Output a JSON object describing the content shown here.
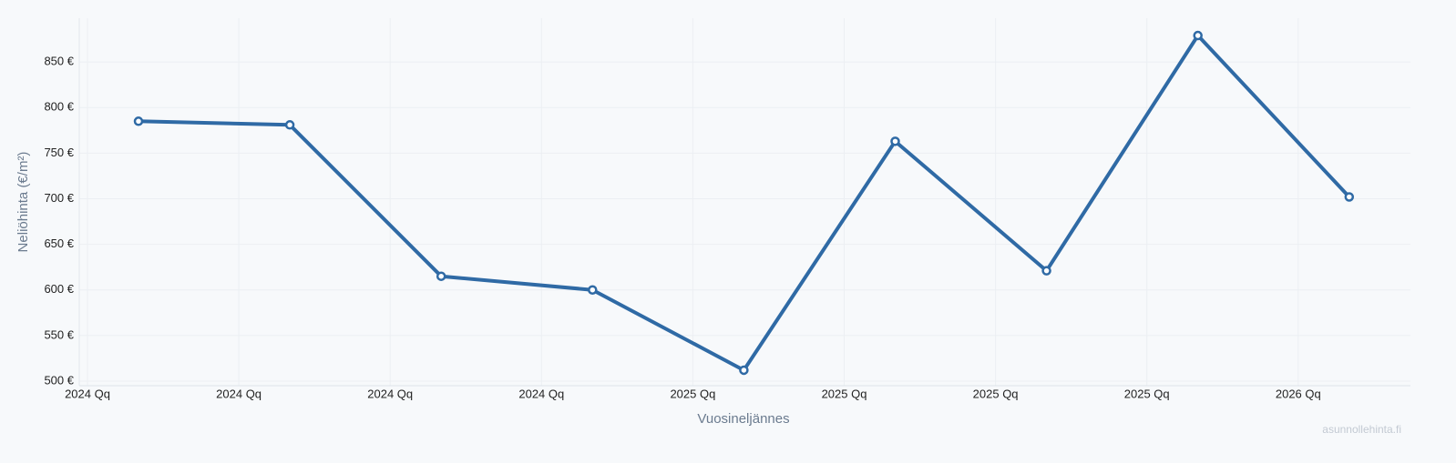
{
  "chart_data": {
    "type": "line",
    "x_label": "Vuosineljännes",
    "y_label": "Neliöhinta (€/m²)",
    "source": "asunnollehinta.fi",
    "categories": [
      "2024 Qq",
      "2024 Qq",
      "2024 Qq",
      "2024 Qq",
      "2025 Qq",
      "2025 Qq",
      "2025 Qq",
      "2025 Qq",
      "2026 Qq"
    ],
    "series": [
      {
        "name": "Neliöhinta",
        "color": "#2f6aa5",
        "values": [
          785,
          781,
          615,
          600,
          512,
          763,
          621,
          879,
          702
        ]
      }
    ],
    "ylim": [
      495,
      898
    ],
    "yticks": [
      {
        "value": 500,
        "label": "500 €"
      },
      {
        "value": 550,
        "label": "550 €"
      },
      {
        "value": 600,
        "label": "600 €"
      },
      {
        "value": 650,
        "label": "650 €"
      },
      {
        "value": 700,
        "label": "700 €"
      },
      {
        "value": 750,
        "label": "750 €"
      },
      {
        "value": 800,
        "label": "800 €"
      },
      {
        "value": 850,
        "label": "850 €"
      }
    ],
    "grid": true
  }
}
